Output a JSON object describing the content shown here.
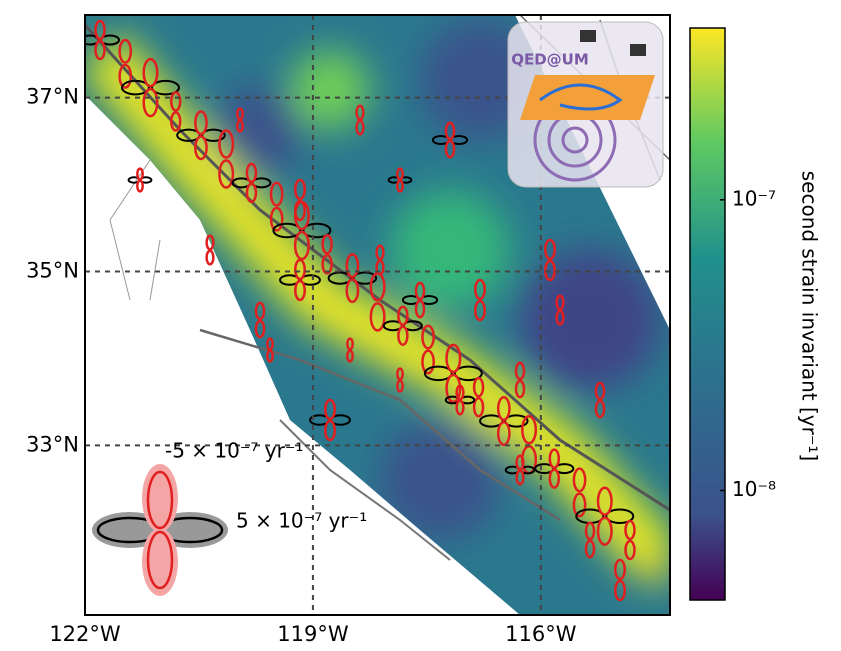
{
  "map": {
    "lonlim": [
      -122,
      -114.3
    ],
    "latlim": [
      31.05,
      37.95
    ],
    "lat_ticks": [
      {
        "value": 37,
        "label": "37°N"
      },
      {
        "value": 35,
        "label": "35°N"
      },
      {
        "value": 33,
        "label": "33°N"
      }
    ],
    "lon_ticks": [
      {
        "value": -122,
        "label": "122°W"
      },
      {
        "value": -119,
        "label": "119°W"
      },
      {
        "value": -116,
        "label": "116°W"
      }
    ],
    "grid": true
  },
  "colorbar": {
    "label": "second strain invariant [yr⁻¹]",
    "scale": "log",
    "lim": [
      4.2e-09,
      3.9e-07
    ],
    "ticks": [
      {
        "value": 1e-07,
        "label": "10⁻⁷"
      },
      {
        "value": 1e-08,
        "label": "10⁻⁸"
      }
    ]
  },
  "legend": {
    "negative": "-5 × 10⁻⁷ yr⁻¹",
    "positive": "5 × 10⁻⁷ yr⁻¹"
  },
  "logo": "QED@UM"
}
